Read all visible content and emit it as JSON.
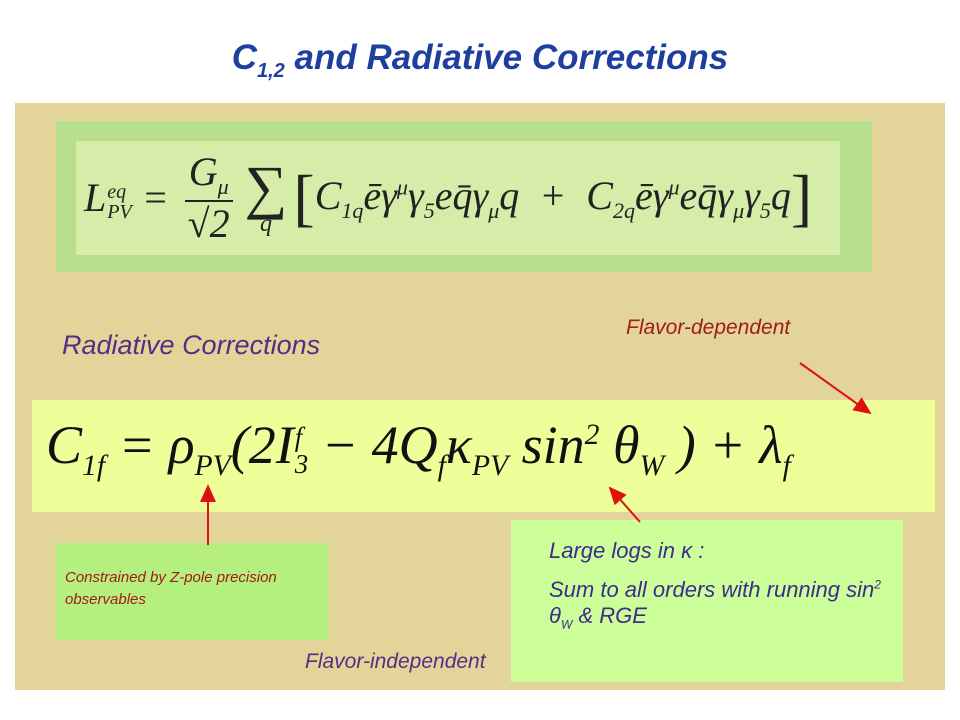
{
  "title": {
    "main": "C",
    "subscript": "1,2",
    "rest": " and Radiative Corrections"
  },
  "lagrangian": {
    "lhs": [
      {
        "text": "L",
        "sup": "eq",
        "sub": "PV"
      },
      {
        "text": " = "
      }
    ],
    "fraction": {
      "numerator": "G",
      "numerator_sub": "μ",
      "denominator": "√2"
    },
    "sum": {
      "symbol": "∑",
      "index": "q"
    },
    "open": "[",
    "terms": [
      {
        "text": "C",
        "sub": "1q"
      },
      {
        "text": "ēγ",
        "sup": "μ"
      },
      {
        "text": "γ",
        "sub": "5"
      },
      {
        "text": "eq̄γ",
        "sub": "μ"
      },
      {
        "text": "q  +  "
      },
      {
        "text": "C",
        "sub": "2q"
      },
      {
        "text": "ēγ",
        "sup": "μ"
      },
      {
        "text": "eq̄γ",
        "sub": "μ"
      },
      {
        "text": "γ",
        "sub": "5"
      },
      {
        "text": "q"
      }
    ],
    "close": "]"
  },
  "section_label": "Radiative Corrections",
  "flavor_dependent": "Flavor-dependent",
  "c1f_equation": [
    {
      "text": "C",
      "sub": "1f"
    },
    {
      "text": " = ρ",
      "sub": "PV"
    },
    {
      "text": "(2I",
      "sup": "f",
      "sub": "3"
    },
    {
      "text": " − 4Q",
      "sub": "f"
    },
    {
      "text": "κ",
      "sub": "PV"
    },
    {
      "text": " sin",
      "sup": "2"
    },
    {
      "text": " θ",
      "sub": "W"
    },
    {
      "text": " ) + λ",
      "sub": "f"
    }
  ],
  "constrained_note": "Constrained by Z-pole precision observables",
  "flavor_independent": "Flavor-independent",
  "logs_box": {
    "line1": "Large logs in κ :",
    "line2": [
      {
        "text": "Sum to all orders with running sin",
        "sup": "2"
      },
      {
        "text": " θ",
        "sub": "W"
      },
      {
        "text": " & RGE"
      }
    ]
  }
}
